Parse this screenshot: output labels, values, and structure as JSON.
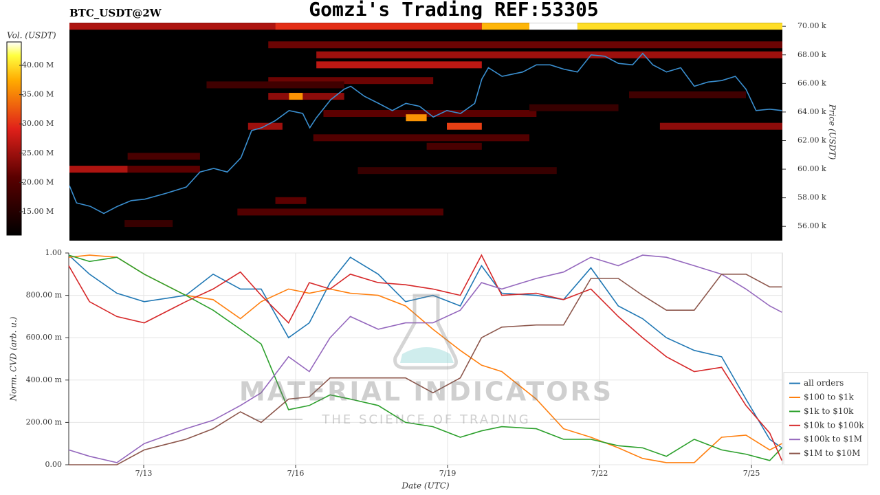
{
  "header": {
    "title": "Gomzi's Trading REF:53305",
    "symbol": "BTC_USDT@2W"
  },
  "watermark": {
    "title": "MATERIAL INDICATORS",
    "subtitle": "THE SCIENCE OF TRADING"
  },
  "chart_data": [
    {
      "type": "heatmap",
      "y_label": "Price (USDT)",
      "colorbar_label": "Vol. (USDT)",
      "xlim": [
        11.52,
        25.61
      ],
      "ylim": [
        55000,
        70250
      ],
      "yticks": [
        {
          "value": 56000,
          "label": "56.00 k"
        },
        {
          "value": 58000,
          "label": "58.00 k"
        },
        {
          "value": 60000,
          "label": "60.00 k"
        },
        {
          "value": 62000,
          "label": "62.00 k"
        },
        {
          "value": 64000,
          "label": "64.00 k"
        },
        {
          "value": 66000,
          "label": "66.00 k"
        },
        {
          "value": 68000,
          "label": "68.00 k"
        },
        {
          "value": 70000,
          "label": "70.00 k"
        }
      ],
      "clim": [
        11000000,
        44000000
      ],
      "cticks": [
        {
          "value": 15000000,
          "label": "15.00 M"
        },
        {
          "value": 20000000,
          "label": "20.00 M"
        },
        {
          "value": 25000000,
          "label": "25.00 M"
        },
        {
          "value": 30000000,
          "label": "30.00 M"
        },
        {
          "value": 35000000,
          "label": "35.00 M"
        },
        {
          "value": 40000000,
          "label": "40.00 M"
        }
      ],
      "bands": {
        "price": [
          70000,
          70000,
          70000,
          70000,
          70000,
          68700,
          68000,
          67300,
          66200,
          65900,
          65100,
          65100,
          63900,
          63600,
          63000,
          63000,
          63000,
          62200,
          61600,
          60900,
          60000,
          60000,
          59900,
          57800,
          57000,
          56200,
          64300,
          65200
        ],
        "x_start": [
          11.52,
          15.59,
          19.67,
          20.61,
          21.56,
          15.45,
          16.4,
          16.4,
          15.45,
          14.23,
          15.45,
          15.86,
          16.54,
          18.17,
          15.05,
          18.98,
          23.19,
          16.34,
          18.58,
          12.67,
          11.52,
          12.67,
          17.22,
          15.59,
          14.84,
          12.61,
          20.61,
          22.58
        ],
        "x_end": [
          15.59,
          19.67,
          20.61,
          21.56,
          25.61,
          25.61,
          25.61,
          19.67,
          18.71,
          16.95,
          16.95,
          16.13,
          20.75,
          18.58,
          15.73,
          19.67,
          25.61,
          20.61,
          19.67,
          14.1,
          12.67,
          14.1,
          21.15,
          16.2,
          18.91,
          13.56,
          22.37,
          24.89
        ],
        "volume": [
          26000000,
          30000000,
          38000000,
          44000000,
          40000000,
          22000000,
          25000000,
          27000000,
          22000000,
          18000000,
          24000000,
          36000000,
          21000000,
          36000000,
          25000000,
          31000000,
          24000000,
          20000000,
          19000000,
          19000000,
          26000000,
          21000000,
          17000000,
          21000000,
          20000000,
          17000000,
          17000000,
          18000000
        ]
      },
      "price_line": {
        "color": "#3a8fd0",
        "x": [
          11.52,
          11.66,
          11.93,
          12.2,
          12.47,
          12.74,
          13.01,
          13.42,
          13.83,
          14.1,
          14.37,
          14.64,
          14.91,
          15.12,
          15.32,
          15.59,
          15.86,
          16.13,
          16.27,
          16.4,
          16.68,
          16.95,
          17.08,
          17.35,
          17.63,
          17.9,
          18.17,
          18.44,
          18.71,
          18.98,
          19.25,
          19.53,
          19.67,
          19.8,
          20.07,
          20.48,
          20.75,
          21.02,
          21.29,
          21.56,
          21.83,
          22.1,
          22.37,
          22.65,
          22.85,
          23.05,
          23.32,
          23.6,
          23.87,
          24.14,
          24.41,
          24.68,
          24.89,
          25.09,
          25.36,
          25.6
        ],
        "values": [
          58850,
          57640,
          57400,
          56900,
          57400,
          57800,
          57900,
          58300,
          58750,
          59800,
          60050,
          59800,
          60800,
          62700,
          62900,
          63400,
          64100,
          63900,
          62900,
          63600,
          64850,
          65600,
          65800,
          65100,
          64600,
          64100,
          64600,
          64400,
          63650,
          64100,
          63900,
          64600,
          66300,
          67100,
          66500,
          66800,
          67300,
          67300,
          67000,
          66800,
          68000,
          67900,
          67400,
          67300,
          68100,
          67300,
          66800,
          67100,
          65800,
          66100,
          66200,
          66500,
          65600,
          64100,
          64200,
          64100
        ]
      }
    },
    {
      "type": "line",
      "x_label": "Date (UTC)",
      "y_label": "Norm. CVD (arb. u.)",
      "grid": true,
      "legend": "lower right",
      "xlim": [
        11.52,
        25.61
      ],
      "xticks": [
        {
          "value": 13,
          "label": "7/13"
        },
        {
          "value": 16,
          "label": "7/16"
        },
        {
          "value": 19,
          "label": "7/19"
        },
        {
          "value": 22,
          "label": "7/22"
        },
        {
          "value": 25,
          "label": "7/25"
        }
      ],
      "ylim": [
        0,
        1
      ],
      "yticks": [
        {
          "value": 0,
          "label": "0.00"
        },
        {
          "value": 0.2,
          "label": "200.00 m"
        },
        {
          "value": 0.4,
          "label": "400.00 m"
        },
        {
          "value": 0.6,
          "label": "600.00 m"
        },
        {
          "value": 0.8,
          "label": "800.00 m"
        },
        {
          "value": 1,
          "label": "1.00"
        }
      ],
      "x": [
        11.52,
        11.93,
        12.47,
        13.01,
        13.83,
        14.37,
        14.91,
        15.32,
        15.86,
        16.27,
        16.68,
        17.08,
        17.63,
        18.17,
        18.71,
        19.25,
        19.67,
        20.07,
        20.75,
        21.29,
        21.83,
        22.37,
        22.85,
        23.32,
        23.87,
        24.41,
        24.89,
        25.36,
        25.6
      ],
      "series": [
        {
          "name": "all orders",
          "color": "#1f77b4",
          "values": [
            0.99,
            0.9,
            0.81,
            0.77,
            0.8,
            0.9,
            0.83,
            0.83,
            0.6,
            0.67,
            0.86,
            0.98,
            0.9,
            0.77,
            0.8,
            0.75,
            0.94,
            0.81,
            0.8,
            0.78,
            0.93,
            0.75,
            0.69,
            0.6,
            0.54,
            0.51,
            0.31,
            0.12,
            0.08
          ]
        },
        {
          "name": "$100 to $1k",
          "color": "#ff7f0e",
          "values": [
            0.98,
            0.99,
            0.98,
            0.9,
            0.8,
            0.78,
            0.69,
            0.77,
            0.83,
            0.81,
            0.83,
            0.81,
            0.8,
            0.75,
            0.64,
            0.54,
            0.47,
            0.44,
            0.31,
            0.17,
            0.13,
            0.08,
            0.03,
            0.01,
            0.01,
            0.13,
            0.14,
            0.07,
            0.1
          ]
        },
        {
          "name": "$1k to $10k",
          "color": "#2ca02c",
          "values": [
            0.99,
            0.96,
            0.98,
            0.9,
            0.8,
            0.73,
            0.64,
            0.57,
            0.26,
            0.28,
            0.33,
            0.31,
            0.28,
            0.2,
            0.18,
            0.13,
            0.16,
            0.18,
            0.17,
            0.12,
            0.12,
            0.09,
            0.08,
            0.04,
            0.12,
            0.07,
            0.05,
            0.02,
            0.08
          ]
        },
        {
          "name": "$10k to $100k",
          "color": "#d62728",
          "values": [
            0.94,
            0.77,
            0.7,
            0.67,
            0.77,
            0.83,
            0.91,
            0.8,
            0.67,
            0.86,
            0.83,
            0.9,
            0.86,
            0.85,
            0.83,
            0.8,
            0.99,
            0.8,
            0.81,
            0.78,
            0.83,
            0.7,
            0.6,
            0.51,
            0.44,
            0.46,
            0.28,
            0.15,
            0.02
          ]
        },
        {
          "name": "$100k to $1M",
          "color": "#9467bd",
          "values": [
            0.07,
            0.04,
            0.01,
            0.1,
            0.17,
            0.21,
            0.28,
            0.34,
            0.51,
            0.44,
            0.6,
            0.7,
            0.64,
            0.67,
            0.67,
            0.73,
            0.86,
            0.83,
            0.88,
            0.91,
            0.98,
            0.94,
            0.99,
            0.98,
            0.94,
            0.9,
            0.83,
            0.75,
            0.72
          ]
        },
        {
          "name": "$1M to $10M",
          "color": "#8c564b",
          "values": [
            0,
            0,
            0,
            0.07,
            0.12,
            0.17,
            0.25,
            0.2,
            0.31,
            0.32,
            0.41,
            0.41,
            0.41,
            0.41,
            0.34,
            0.41,
            0.6,
            0.65,
            0.66,
            0.66,
            0.88,
            0.88,
            0.8,
            0.73,
            0.73,
            0.9,
            0.9,
            0.84,
            0.84
          ]
        }
      ]
    }
  ]
}
